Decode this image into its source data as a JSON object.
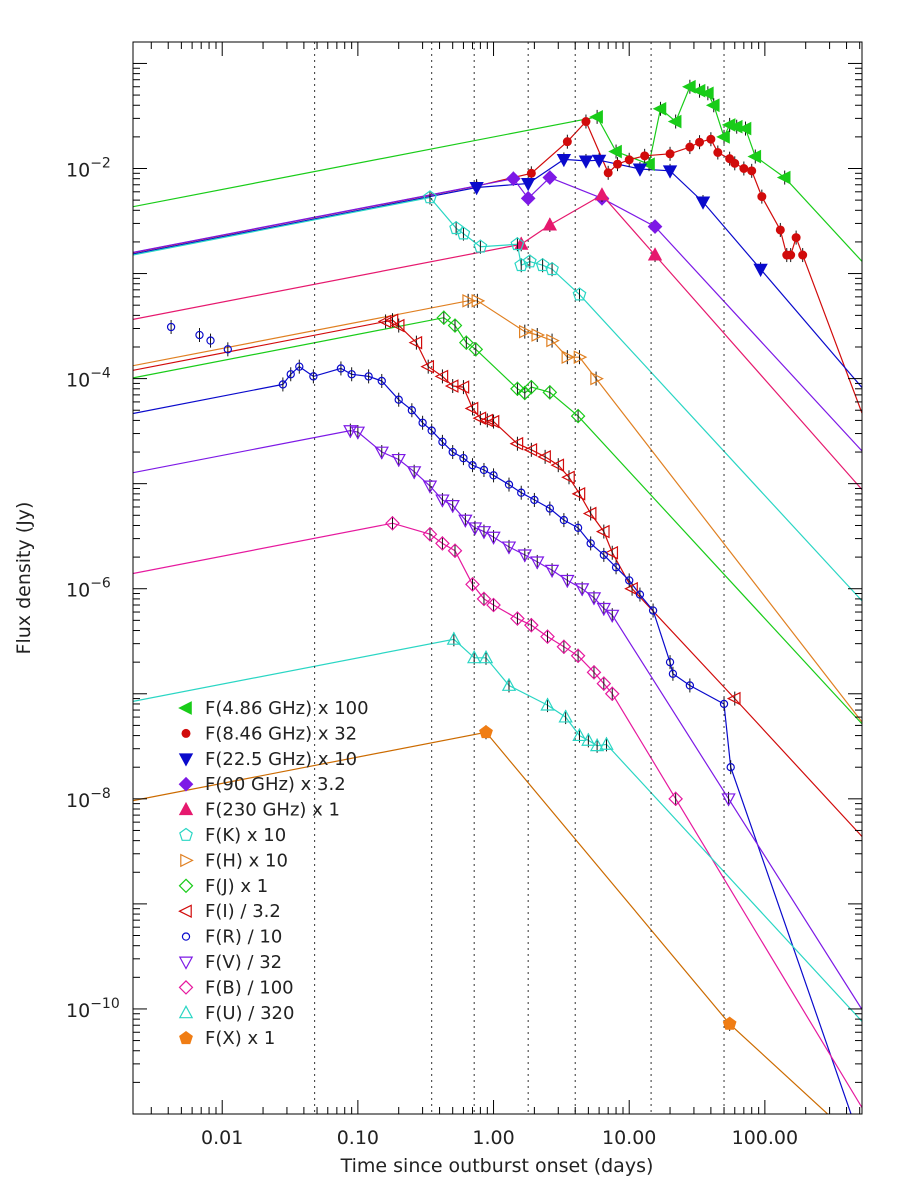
{
  "chart_data": {
    "type": "scatter",
    "title": "",
    "xlabel": "Time since outburst onset (days)",
    "ylabel": "Flux density (Jy)",
    "x_scale": "log",
    "y_scale": "log",
    "xlim": [
      0.0022,
      520
    ],
    "ylim": [
      1e-11,
      0.16
    ],
    "x_ticks": [
      {
        "value": 0.01,
        "label": "0.01"
      },
      {
        "value": 0.1,
        "label": "0.10"
      },
      {
        "value": 1,
        "label": "1.00"
      },
      {
        "value": 10,
        "label": "10.00"
      },
      {
        "value": 100,
        "label": "100.00"
      }
    ],
    "y_ticks": [
      {
        "value": 1e-10,
        "mantissa": "10",
        "exp": "−10"
      },
      {
        "value": 1e-08,
        "mantissa": "10",
        "exp": "−8"
      },
      {
        "value": 1e-06,
        "mantissa": "10",
        "exp": "−6"
      },
      {
        "value": 0.0001,
        "mantissa": "10",
        "exp": "−4"
      },
      {
        "value": 0.01,
        "mantissa": "10",
        "exp": "−2"
      }
    ],
    "grid": false,
    "legend_position": "bottom-left",
    "vlines": [
      0.048,
      0.35,
      0.72,
      1.8,
      4.0,
      14.5,
      50
    ],
    "series": [
      {
        "name": "F(4.86 GHz) x 100",
        "color": "#19cc19",
        "marker": "tri-left-filled",
        "points": [
          [
            5.8,
            0.031
          ],
          [
            17,
            0.037
          ],
          [
            22,
            0.028
          ],
          [
            28,
            0.06
          ],
          [
            33,
            0.055
          ],
          [
            38,
            0.052
          ],
          [
            42,
            0.04
          ],
          [
            50,
            0.02
          ],
          [
            55,
            0.026
          ],
          [
            62,
            0.025
          ],
          [
            72,
            0.024
          ],
          [
            85,
            0.013
          ],
          [
            140,
            0.0082
          ],
          [
            8,
            0.0145
          ],
          [
            14,
            0.011
          ]
        ]
      },
      {
        "name": "F(8.46 GHz) x 32",
        "color": "#d10b0b",
        "marker": "circle-filled",
        "points": [
          [
            0.75,
            0.0068
          ],
          [
            1.9,
            0.009
          ],
          [
            3.5,
            0.018
          ],
          [
            4.8,
            0.028
          ],
          [
            7,
            0.0091
          ],
          [
            8.2,
            0.011
          ],
          [
            10,
            0.0121
          ],
          [
            13,
            0.0132
          ],
          [
            20,
            0.0138
          ],
          [
            28,
            0.016
          ],
          [
            33,
            0.0178
          ],
          [
            40,
            0.019
          ],
          [
            45,
            0.0142
          ],
          [
            55,
            0.0124
          ],
          [
            60,
            0.0112
          ],
          [
            70,
            0.01
          ],
          [
            80,
            0.0095
          ],
          [
            95,
            0.0054
          ],
          [
            130,
            0.0026
          ],
          [
            155,
            0.0015
          ],
          [
            170,
            0.0022
          ],
          [
            190,
            0.0015
          ],
          [
            145,
            0.0015
          ]
        ]
      },
      {
        "name": "F(22.5 GHz) x 10",
        "color": "#0a0acc",
        "marker": "tri-down-filled",
        "points": [
          [
            0.75,
            0.0066
          ],
          [
            1.8,
            0.0072
          ],
          [
            3.3,
            0.0122
          ],
          [
            4.8,
            0.0118
          ],
          [
            6,
            0.012
          ],
          [
            12,
            0.0099
          ],
          [
            20,
            0.0095
          ],
          [
            35,
            0.0048
          ],
          [
            93,
            0.0011
          ]
        ]
      },
      {
        "name": "F(90 GHz) x 3.2",
        "color": "#7d19e6",
        "marker": "diamond-filled",
        "points": [
          [
            1.4,
            0.008
          ],
          [
            1.8,
            0.0052
          ],
          [
            2.6,
            0.0082
          ],
          [
            6.3,
            0.0052
          ],
          [
            15.5,
            0.0028
          ]
        ]
      },
      {
        "name": "F(230 GHz) x 1",
        "color": "#e6196e",
        "marker": "tri-up-filled",
        "points": [
          [
            1.6,
            0.0019
          ],
          [
            2.6,
            0.0029
          ],
          [
            6.3,
            0.0056
          ],
          [
            15.5,
            0.0015
          ]
        ]
      },
      {
        "name": "F(K) x 10",
        "color": "#2ad6c4",
        "marker": "pentagon-open",
        "points": [
          [
            0.34,
            0.0053
          ],
          [
            0.53,
            0.0027
          ],
          [
            0.6,
            0.0024
          ],
          [
            0.8,
            0.0018
          ],
          [
            1.5,
            0.0019
          ],
          [
            1.85,
            0.0013
          ],
          [
            2.3,
            0.0012
          ],
          [
            2.7,
            0.0011
          ],
          [
            4.3,
            0.00063
          ],
          [
            1.6,
            0.0012
          ]
        ]
      },
      {
        "name": "F(H) x 10",
        "color": "#e08022",
        "marker": "tri-right-open",
        "points": [
          [
            0.65,
            0.00055
          ],
          [
            0.76,
            0.00055
          ],
          [
            1.7,
            0.00028
          ],
          [
            2.1,
            0.00026
          ],
          [
            2.7,
            0.00023
          ],
          [
            3.5,
            0.00016
          ],
          [
            4.3,
            0.00016
          ],
          [
            5.7,
            0.0001
          ]
        ]
      },
      {
        "name": "F(J) x 1",
        "color": "#19cc19",
        "marker": "diamond-open",
        "points": [
          [
            0.43,
            0.00038
          ],
          [
            0.52,
            0.00032
          ],
          [
            0.63,
            0.00022
          ],
          [
            0.74,
            0.00019
          ],
          [
            1.5,
            8e-05
          ],
          [
            1.7,
            7.3e-05
          ],
          [
            1.9,
            8.3e-05
          ],
          [
            2.6,
            7.4e-05
          ],
          [
            4.2,
            4.4e-05
          ]
        ]
      },
      {
        "name": "F(I) / 3.2",
        "color": "#d10b0b",
        "marker": "tri-left-open",
        "points": [
          [
            0.16,
            0.00035
          ],
          [
            0.18,
            0.00036
          ],
          [
            0.2,
            0.00032
          ],
          [
            0.27,
            0.00022
          ],
          [
            0.33,
            0.00013
          ],
          [
            0.42,
            0.000105
          ],
          [
            0.5,
            8.5e-05
          ],
          [
            0.6,
            8.3e-05
          ],
          [
            0.7,
            5.2e-05
          ],
          [
            0.8,
            4.2e-05
          ],
          [
            0.9,
            4e-05
          ],
          [
            1.0,
            3.9e-05
          ],
          [
            1.5,
            2.4e-05
          ],
          [
            1.9,
            2.1e-05
          ],
          [
            2.4,
            1.8e-05
          ],
          [
            3.0,
            1.5e-05
          ],
          [
            3.6,
            1.15e-05
          ],
          [
            4.3,
            8e-06
          ],
          [
            5.2,
            5.2e-06
          ],
          [
            6.5,
            3.5e-06
          ],
          [
            7.5,
            2.2e-06
          ],
          [
            10.5,
            1e-06
          ],
          [
            60,
            9e-08
          ]
        ]
      },
      {
        "name": "F(R) / 10",
        "color": "#0a0acc",
        "marker": "circle-open",
        "points": [
          [
            0.0042,
            0.00031
          ],
          [
            0.0068,
            0.00026
          ],
          [
            0.0082,
            0.00023
          ],
          [
            0.011,
            0.00019
          ],
          [
            0.028,
            8.8e-05
          ],
          [
            0.032,
            0.00011
          ],
          [
            0.037,
            0.00013
          ],
          [
            0.047,
            0.000105
          ],
          [
            0.075,
            0.000125
          ],
          [
            0.09,
            0.00011
          ],
          [
            0.12,
            0.000105
          ],
          [
            0.15,
            9.5e-05
          ],
          [
            0.2,
            6.3e-05
          ],
          [
            0.25,
            5e-05
          ],
          [
            0.3,
            3.8e-05
          ],
          [
            0.35,
            3.2e-05
          ],
          [
            0.42,
            2.5e-05
          ],
          [
            0.5,
            2e-05
          ],
          [
            0.6,
            1.75e-05
          ],
          [
            0.7,
            1.5e-05
          ],
          [
            0.85,
            1.35e-05
          ],
          [
            1.0,
            1.2e-05
          ],
          [
            1.3,
            9.8e-06
          ],
          [
            1.6,
            8.2e-06
          ],
          [
            2.0,
            7e-06
          ],
          [
            2.6,
            5.8e-06
          ],
          [
            3.3,
            4.5e-06
          ],
          [
            4.2,
            3.8e-06
          ],
          [
            5.2,
            2.7e-06
          ],
          [
            6.5,
            2.1e-06
          ],
          [
            8.0,
            1.6e-06
          ],
          [
            10,
            1.2e-06
          ],
          [
            12,
            8.8e-07
          ],
          [
            15,
            6.2e-07
          ],
          [
            20,
            2e-07
          ],
          [
            21,
            1.55e-07
          ],
          [
            28,
            1.2e-07
          ],
          [
            50,
            8e-08
          ],
          [
            56,
            2e-08
          ]
        ]
      },
      {
        "name": "F(V) / 32",
        "color": "#7d19e6",
        "marker": "tri-down-open",
        "points": [
          [
            0.088,
            3.2e-05
          ],
          [
            0.1,
            3.1e-05
          ],
          [
            0.15,
            2e-05
          ],
          [
            0.2,
            1.7e-05
          ],
          [
            0.26,
            1.3e-05
          ],
          [
            0.34,
            9.5e-06
          ],
          [
            0.42,
            7e-06
          ],
          [
            0.5,
            6.2e-06
          ],
          [
            0.62,
            4.5e-06
          ],
          [
            0.73,
            3.8e-06
          ],
          [
            0.85,
            3.5e-06
          ],
          [
            1.0,
            3.1e-06
          ],
          [
            1.3,
            2.5e-06
          ],
          [
            1.7,
            2.1e-06
          ],
          [
            2.1,
            1.8e-06
          ],
          [
            2.7,
            1.5e-06
          ],
          [
            3.5,
            1.2e-06
          ],
          [
            4.5,
            1e-06
          ],
          [
            5.5,
            8.2e-07
          ],
          [
            6.5,
            6.5e-07
          ],
          [
            7.5,
            5.6e-07
          ],
          [
            54,
            1e-08
          ]
        ]
      },
      {
        "name": "F(B) / 100",
        "color": "#e6199e",
        "marker": "diamond-open",
        "points": [
          [
            0.18,
            4.2e-06
          ],
          [
            0.34,
            3.3e-06
          ],
          [
            0.42,
            2.7e-06
          ],
          [
            0.52,
            2.3e-06
          ],
          [
            0.7,
            1.1e-06
          ],
          [
            0.85,
            8e-07
          ],
          [
            1.0,
            7e-07
          ],
          [
            1.5,
            5.2e-07
          ],
          [
            1.9,
            4.5e-07
          ],
          [
            2.5,
            3.5e-07
          ],
          [
            3.3,
            2.8e-07
          ],
          [
            4.2,
            2.3e-07
          ],
          [
            5.5,
            1.6e-07
          ],
          [
            6.5,
            1.25e-07
          ],
          [
            7.5,
            1e-07
          ],
          [
            22,
            1e-08
          ]
        ]
      },
      {
        "name": "F(U) / 320",
        "color": "#2ad6c4",
        "marker": "tri-up-open",
        "points": [
          [
            0.51,
            3.3e-07
          ],
          [
            0.72,
            2.2e-07
          ],
          [
            0.88,
            2.2e-07
          ],
          [
            1.3,
            1.2e-07
          ],
          [
            2.5,
            7.8e-08
          ],
          [
            3.4,
            6e-08
          ],
          [
            4.3,
            4e-08
          ],
          [
            5.0,
            3.6e-08
          ],
          [
            5.8,
            3.2e-08
          ],
          [
            6.8,
            3.3e-08
          ]
        ]
      },
      {
        "name": "F(X) x 1",
        "color": "#f07d14",
        "marker": "pentagon-filled",
        "points": [
          [
            0.88,
            4.3e-08
          ],
          [
            55,
            7.2e-11
          ]
        ]
      }
    ]
  }
}
